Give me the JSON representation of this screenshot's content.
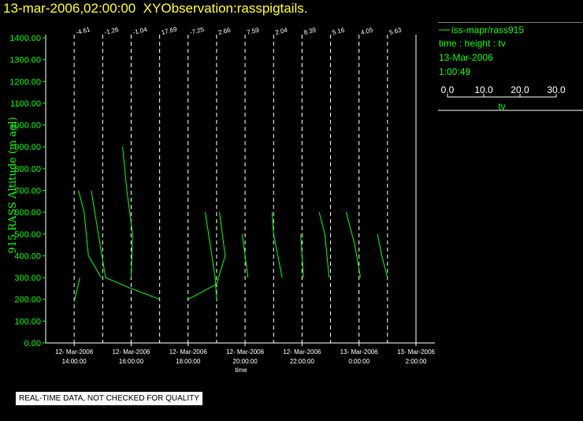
{
  "title": "13-mar-2006,02:00:00  XYObservation:rasspigtails.",
  "legend": {
    "series_label": "iss-mapr/rass915",
    "line2": "time : height : tv",
    "line3": "13-Mar-2006",
    "line4": "1:00:49",
    "scale_ticks": [
      "0.0",
      "10.0",
      "20.0",
      "30.0"
    ],
    "scale_label": "tv"
  },
  "disclaimer": "REAL-TIME DATA, NOT CHECKED FOR QUALITY",
  "colors": {
    "background": "#000000",
    "data": "#00ff00",
    "title": "#ffff00",
    "axis": "#ffffff"
  },
  "chart_data": {
    "type": "line",
    "title": "",
    "xlabel": "time",
    "ylabel": "915 RASS Altitude (m agl)",
    "ylim": [
      0,
      1400
    ],
    "yticks": [
      "0.00",
      "100.00",
      "200.00",
      "300.00",
      "400.00",
      "500.00",
      "600.00",
      "700.00",
      "800.00",
      "900.00",
      "1000.00",
      "1100.00",
      "1200.00",
      "1300.00",
      "1400.00"
    ],
    "xlim": [
      13,
      26
    ],
    "xticks": [
      {
        "x": 14,
        "date": "12- Mar-2006",
        "time": "14:00:00"
      },
      {
        "x": 16,
        "date": "12- Mar-2006",
        "time": "16:00:00"
      },
      {
        "x": 18,
        "date": "12- Mar-2006",
        "time": "18:00:00"
      },
      {
        "x": 20,
        "date": "12- Mar-2006",
        "time": "20:00:00"
      },
      {
        "x": 22,
        "date": "12- Mar-2006",
        "time": "22:00:00"
      },
      {
        "x": 24,
        "date": "13- Mar-2006",
        "time": "0:00:00"
      },
      {
        "x": 26,
        "date": "13- Mar-2006",
        "time": "2:00:00"
      }
    ],
    "pigtail_times": [
      14,
      15,
      16,
      17,
      18,
      19,
      20,
      21,
      22,
      23,
      24,
      25
    ],
    "pigtail_labels": [
      "-4.61",
      "-1.26",
      "-1.04",
      "17.69",
      "-7.25",
      "2.66",
      "7.59",
      "2.04",
      "8.39",
      "5.16",
      "4.05",
      "5.63"
    ],
    "series": [
      {
        "name": "iss-mapr/rass915",
        "segments": [
          [
            [
              14.0,
              190
            ],
            [
              14.2,
              300
            ]
          ],
          [
            [
              14.15,
              700
            ],
            [
              14.35,
              600
            ],
            [
              14.5,
              400
            ],
            [
              14.95,
              300
            ]
          ],
          [
            [
              14.6,
              700
            ],
            [
              15.1,
              300
            ],
            [
              16.0,
              250
            ],
            [
              17.0,
              200
            ]
          ],
          [
            [
              15.7,
              900
            ],
            [
              15.85,
              700
            ],
            [
              16.05,
              500
            ],
            [
              16.0,
              300
            ]
          ],
          [
            [
              18.0,
              200
            ],
            [
              19.0,
              270
            ],
            [
              19.3,
              400
            ],
            [
              19.1,
              600
            ]
          ],
          [
            [
              18.6,
              600
            ],
            [
              18.95,
              300
            ],
            [
              19.0,
              200
            ]
          ],
          [
            [
              19.9,
              500
            ],
            [
              20.1,
              300
            ]
          ],
          [
            [
              20.95,
              600
            ],
            [
              21.0,
              500
            ],
            [
              21.3,
              300
            ]
          ],
          [
            [
              21.95,
              500
            ],
            [
              22.05,
              300
            ]
          ],
          [
            [
              22.6,
              600
            ],
            [
              22.8,
              500
            ],
            [
              22.95,
              300
            ]
          ],
          [
            [
              23.55,
              600
            ],
            [
              23.85,
              450
            ],
            [
              24.05,
              300
            ]
          ],
          [
            [
              24.65,
              500
            ],
            [
              24.8,
              400
            ],
            [
              25.0,
              300
            ]
          ]
        ]
      }
    ]
  }
}
